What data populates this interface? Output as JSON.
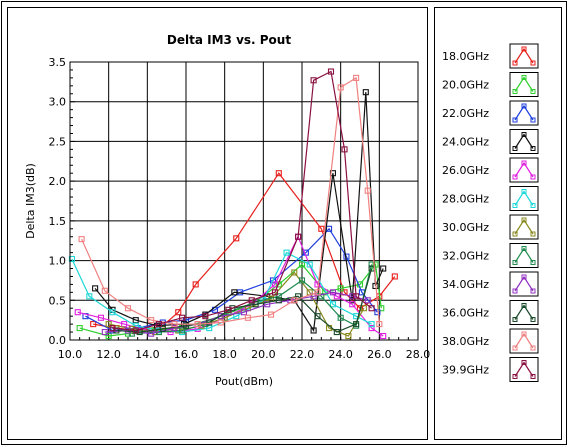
{
  "chart_data": {
    "type": "line",
    "title": "Delta IM3 vs. Pout",
    "xlabel": "Pout(dBm)",
    "ylabel": "Delta IM3(dB)",
    "xlim": [
      10.0,
      28.0
    ],
    "ylim": [
      0.0,
      3.5
    ],
    "xticks": [
      "10.0",
      "12.0",
      "14.0",
      "16.0",
      "18.0",
      "20.0",
      "22.0",
      "24.0",
      "26.0",
      "28.0"
    ],
    "yticks": [
      "0.0",
      "0.5",
      "1.0",
      "1.5",
      "2.0",
      "2.5",
      "3.0",
      "3.5"
    ],
    "grid": true,
    "legend_position": "right",
    "series": [
      {
        "name": "18.0GHz",
        "color": "#e8201c",
        "x": [
          11.2,
          12.4,
          13.6,
          14.8,
          15.6,
          16.5,
          18.6,
          20.8,
          23.0,
          24.2,
          25.0,
          26.0,
          26.8
        ],
        "y": [
          0.2,
          0.15,
          0.12,
          0.18,
          0.35,
          0.7,
          1.28,
          2.1,
          1.4,
          0.6,
          0.4,
          0.55,
          0.8
        ]
      },
      {
        "name": "20.0GHz",
        "color": "#2fd02f",
        "x": [
          10.5,
          12.0,
          13.0,
          14.2,
          15.8,
          17.8,
          19.4,
          20.8,
          22.0,
          23.2,
          24.0,
          25.0,
          25.8,
          26.1
        ],
        "y": [
          0.15,
          0.05,
          0.08,
          0.12,
          0.15,
          0.3,
          0.45,
          0.7,
          0.95,
          0.6,
          0.65,
          0.7,
          0.95,
          0.4
        ]
      },
      {
        "name": "22.0GHz",
        "color": "#1f3fdc",
        "x": [
          10.8,
          12.2,
          13.5,
          14.8,
          16.0,
          17.5,
          18.8,
          20.5,
          22.2,
          23.4,
          24.3,
          25.1,
          25.9
        ],
        "y": [
          0.3,
          0.12,
          0.15,
          0.22,
          0.25,
          0.38,
          0.6,
          0.75,
          1.1,
          1.4,
          1.05,
          0.6,
          0.35
        ]
      },
      {
        "name": "24.0GHz",
        "color": "#111111",
        "x": [
          11.3,
          12.2,
          13.4,
          14.5,
          15.9,
          17.0,
          18.5,
          20.2,
          21.6,
          22.6,
          23.6,
          24.6,
          25.3,
          25.8,
          26.2
        ],
        "y": [
          0.65,
          0.38,
          0.25,
          0.18,
          0.2,
          0.32,
          0.6,
          0.55,
          0.5,
          0.12,
          2.1,
          0.5,
          3.12,
          0.68,
          0.9
        ]
      },
      {
        "name": "26.0GHz",
        "color": "#e020e0",
        "x": [
          10.4,
          11.6,
          12.8,
          14.0,
          15.2,
          16.6,
          18.0,
          19.4,
          20.6,
          21.8,
          22.8,
          23.8,
          24.6,
          25.6,
          26.2
        ],
        "y": [
          0.35,
          0.28,
          0.2,
          0.12,
          0.1,
          0.14,
          0.28,
          0.45,
          0.7,
          1.3,
          0.7,
          0.55,
          0.45,
          0.15,
          0.05
        ]
      },
      {
        "name": "28.0GHz",
        "color": "#20d8d8",
        "x": [
          10.1,
          11.0,
          12.2,
          13.4,
          14.6,
          15.8,
          17.2,
          18.6,
          20.0,
          21.2,
          22.4,
          23.6,
          24.8,
          25.6
        ],
        "y": [
          1.02,
          0.55,
          0.35,
          0.18,
          0.12,
          0.1,
          0.15,
          0.3,
          0.5,
          1.1,
          0.95,
          0.45,
          0.3,
          0.2
        ]
      },
      {
        "name": "30.0GHz",
        "color": "#8a8a20",
        "x": [
          12.0,
          13.2,
          14.4,
          15.6,
          16.8,
          18.0,
          19.2,
          20.4,
          21.6,
          22.4,
          23.4,
          24.4,
          25.2
        ],
        "y": [
          0.2,
          0.14,
          0.1,
          0.12,
          0.18,
          0.28,
          0.4,
          0.52,
          0.85,
          0.6,
          0.15,
          0.05,
          0.4
        ]
      },
      {
        "name": "32.0GHz",
        "color": "#208a50",
        "x": [
          13.2,
          14.6,
          15.8,
          17.0,
          18.2,
          19.6,
          20.8,
          22.0,
          23.0,
          24.0,
          24.8,
          25.6
        ],
        "y": [
          0.08,
          0.1,
          0.12,
          0.2,
          0.35,
          0.48,
          0.55,
          0.75,
          0.55,
          0.28,
          0.18,
          0.95
        ]
      },
      {
        "name": "34.0GHz",
        "color": "#9030c0",
        "x": [
          11.8,
          13.0,
          14.2,
          15.4,
          16.6,
          17.8,
          19.0,
          20.2,
          21.4,
          22.6,
          23.6,
          24.6,
          25.4
        ],
        "y": [
          0.1,
          0.12,
          0.08,
          0.15,
          0.2,
          0.3,
          0.35,
          0.45,
          0.5,
          0.55,
          0.6,
          0.55,
          0.5
        ]
      },
      {
        "name": "36.0GHz",
        "color": "#1a4a2a",
        "x": [
          12.4,
          13.6,
          14.8,
          16.0,
          17.2,
          18.4,
          19.6,
          20.8,
          21.8,
          22.8,
          23.8,
          24.8,
          25.6
        ],
        "y": [
          0.12,
          0.1,
          0.14,
          0.18,
          0.22,
          0.4,
          0.45,
          0.5,
          0.55,
          0.3,
          0.1,
          0.2,
          0.9
        ]
      },
      {
        "name": "38.0GHz",
        "color": "#f08080",
        "x": [
          10.6,
          11.8,
          13.0,
          14.2,
          15.4,
          16.6,
          17.8,
          19.2,
          20.4,
          21.6,
          22.8,
          24.0,
          24.8,
          25.4,
          26.0
        ],
        "y": [
          1.27,
          0.62,
          0.4,
          0.25,
          0.2,
          0.2,
          0.22,
          0.28,
          0.32,
          0.5,
          0.6,
          3.18,
          3.3,
          1.88,
          0.2
        ]
      },
      {
        "name": "39.9GHz",
        "color": "#8a1040",
        "x": [
          12.2,
          13.4,
          14.6,
          15.8,
          17.0,
          18.2,
          19.4,
          20.6,
          21.8,
          22.6,
          23.5,
          24.2,
          24.8,
          25.6
        ],
        "y": [
          0.15,
          0.12,
          0.2,
          0.28,
          0.3,
          0.38,
          0.5,
          0.6,
          1.3,
          3.27,
          3.38,
          2.4,
          0.55,
          0.4
        ]
      }
    ]
  }
}
